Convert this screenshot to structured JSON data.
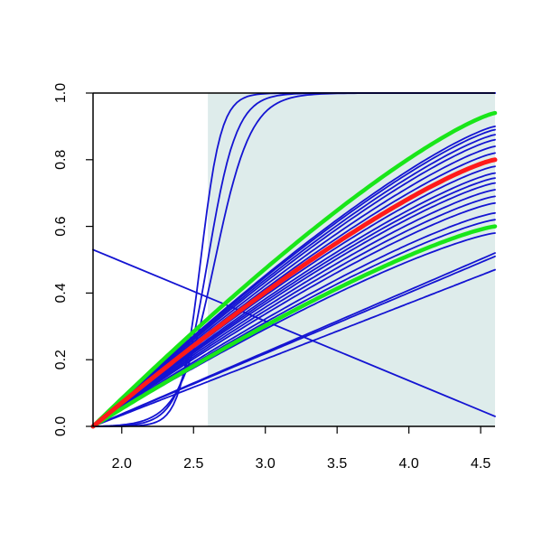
{
  "chart_data": {
    "type": "line",
    "title": "",
    "xlabel": "",
    "ylabel": "",
    "xlim": [
      1.8,
      4.6
    ],
    "ylim": [
      0.0,
      1.0
    ],
    "grid": false,
    "x_ticks": [
      2.0,
      2.5,
      3.0,
      3.5,
      4.0,
      4.5
    ],
    "x_tick_labels": [
      "2.0",
      "2.5",
      "3.0",
      "3.5",
      "4.0",
      "4.5"
    ],
    "y_ticks": [
      0.0,
      0.2,
      0.4,
      0.6,
      0.8,
      1.0
    ],
    "y_tick_labels": [
      "0.0",
      "0.2",
      "0.4",
      "0.6",
      "0.8",
      "1.0"
    ],
    "shaded_region": {
      "x_from": 2.6,
      "x_to": 4.6,
      "color": "#deeceb"
    },
    "colors": {
      "blue": "#1414d2",
      "red": "#ff1a1a",
      "green": "#19e619",
      "axis": "#000000"
    },
    "x_start": 1.8,
    "series": [
      {
        "group": "blue",
        "shape": "linear",
        "endpoint": 0.47
      },
      {
        "group": "blue",
        "shape": "linear",
        "endpoint": 0.51
      },
      {
        "group": "blue",
        "shape": "linear",
        "endpoint": 0.52
      },
      {
        "group": "blue",
        "shape": "concave",
        "endpoint": 0.58
      },
      {
        "group": "blue",
        "shape": "concave",
        "endpoint": 0.62
      },
      {
        "group": "blue",
        "shape": "concave",
        "endpoint": 0.64
      },
      {
        "group": "blue",
        "shape": "concave",
        "endpoint": 0.67
      },
      {
        "group": "blue",
        "shape": "concave",
        "endpoint": 0.69
      },
      {
        "group": "blue",
        "shape": "concave",
        "endpoint": 0.71
      },
      {
        "group": "blue",
        "shape": "concave",
        "endpoint": 0.73
      },
      {
        "group": "blue",
        "shape": "concave",
        "endpoint": 0.745
      },
      {
        "group": "blue",
        "shape": "concave",
        "endpoint": 0.76
      },
      {
        "group": "blue",
        "shape": "concave",
        "endpoint": 0.78
      },
      {
        "group": "blue",
        "shape": "concave",
        "endpoint": 0.8
      },
      {
        "group": "blue",
        "shape": "concave",
        "endpoint": 0.82
      },
      {
        "group": "blue",
        "shape": "concave",
        "endpoint": 0.84
      },
      {
        "group": "blue",
        "shape": "concave",
        "endpoint": 0.86
      },
      {
        "group": "blue",
        "shape": "concave",
        "endpoint": 0.875
      },
      {
        "group": "blue",
        "shape": "concave",
        "endpoint": 0.89
      },
      {
        "group": "blue",
        "shape": "concave",
        "endpoint": 0.9
      },
      {
        "group": "blue",
        "shape": "sigmoid",
        "midpoint": 2.55,
        "steepness": 14
      },
      {
        "group": "blue",
        "shape": "sigmoid",
        "midpoint": 2.6,
        "steepness": 10
      },
      {
        "group": "blue",
        "shape": "sigmoid",
        "midpoint": 2.65,
        "steepness": 8
      },
      {
        "group": "blue",
        "shape": "points",
        "x": [
          1.8,
          4.6
        ],
        "y": [
          0.53,
          0.03
        ]
      },
      {
        "group": "green",
        "shape": "concave",
        "endpoint": 0.6
      },
      {
        "group": "green",
        "shape": "concave",
        "endpoint": 0.94
      },
      {
        "group": "red",
        "shape": "concave",
        "endpoint": 0.8
      }
    ]
  }
}
